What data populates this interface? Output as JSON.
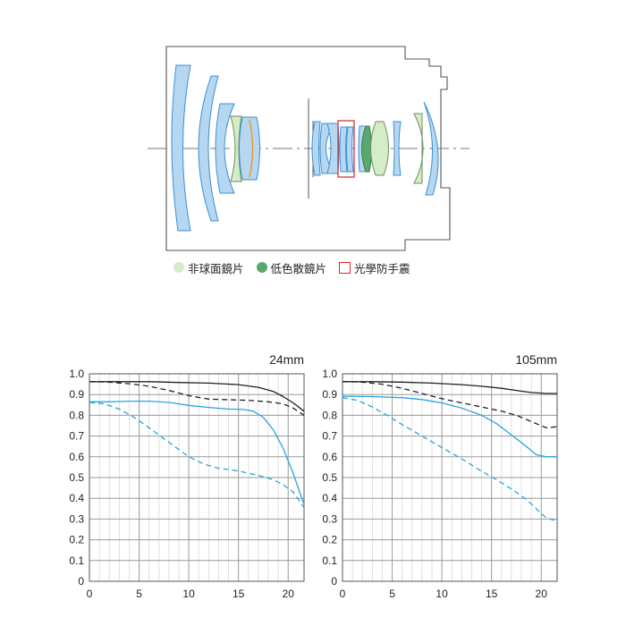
{
  "legend": {
    "items": [
      {
        "label": "非球面鏡片",
        "color": "#d4ecc8",
        "shape": "circle"
      },
      {
        "label": "低色散鏡片",
        "color": "#5aa86e",
        "shape": "circle"
      },
      {
        "label": "光學防手震",
        "color": "#d9262b",
        "shape": "box"
      }
    ]
  },
  "colors": {
    "lens_blue": "#b6d7f1",
    "lens_outline": "#3d8fd1",
    "aspherical": "#d4ecc8",
    "ld": "#5aa86e",
    "ois": "#d9262b",
    "mtf_black": "#231f20",
    "mtf_blue": "#2aa4dd"
  },
  "chart_data": [
    {
      "type": "line",
      "title": "24mm",
      "xlabel": "",
      "ylabel": "",
      "xlim": [
        0,
        21.6
      ],
      "ylim": [
        0,
        1.0
      ],
      "x_ticks": [
        "0",
        "5",
        "10",
        "15",
        "20"
      ],
      "y_ticks": [
        "0",
        "0.1",
        "0.2",
        "0.3",
        "0.4",
        "0.5",
        "0.6",
        "0.7",
        "0.8",
        "0.9",
        "1.0"
      ],
      "grid": true,
      "series": [
        {
          "color": "#231f20",
          "dash": false,
          "x": [
            0,
            3,
            6,
            9,
            12,
            15,
            17,
            18.5,
            19.5,
            20.5,
            21.6
          ],
          "y": [
            0.962,
            0.962,
            0.962,
            0.958,
            0.955,
            0.948,
            0.935,
            0.915,
            0.89,
            0.86,
            0.82
          ]
        },
        {
          "color": "#231f20",
          "dash": true,
          "x": [
            0,
            2,
            4,
            6,
            8,
            10,
            12,
            14,
            16,
            18,
            19.5,
            20.5,
            21.6
          ],
          "y": [
            0.962,
            0.96,
            0.952,
            0.94,
            0.92,
            0.895,
            0.878,
            0.875,
            0.872,
            0.865,
            0.855,
            0.835,
            0.8
          ]
        },
        {
          "color": "#2aa4dd",
          "dash": false,
          "x": [
            0,
            2,
            4,
            6,
            8,
            10,
            12,
            14,
            15.5,
            16.5,
            17.5,
            18.5,
            19.5,
            20.5,
            21.6
          ],
          "y": [
            0.865,
            0.865,
            0.868,
            0.868,
            0.862,
            0.848,
            0.838,
            0.83,
            0.828,
            0.82,
            0.79,
            0.73,
            0.64,
            0.52,
            0.37
          ]
        },
        {
          "color": "#2aa4dd",
          "dash": true,
          "x": [
            0,
            1.5,
            3,
            4.5,
            6,
            8,
            10,
            11.5,
            13,
            15,
            17,
            18.5,
            19.5,
            20.5,
            21.6
          ],
          "y": [
            0.862,
            0.855,
            0.83,
            0.79,
            0.74,
            0.67,
            0.6,
            0.565,
            0.545,
            0.532,
            0.51,
            0.49,
            0.465,
            0.43,
            0.355
          ]
        }
      ]
    },
    {
      "type": "line",
      "title": "105mm",
      "xlabel": "",
      "ylabel": "",
      "xlim": [
        0,
        21.6
      ],
      "ylim": [
        0,
        1.0
      ],
      "x_ticks": [
        "0",
        "5",
        "10",
        "15",
        "20"
      ],
      "y_ticks": [
        "0",
        "0.1",
        "0.2",
        "0.3",
        "0.4",
        "0.5",
        "0.6",
        "0.7",
        "0.8",
        "0.9",
        "1.0"
      ],
      "grid": true,
      "series": [
        {
          "color": "#231f20",
          "dash": false,
          "x": [
            0,
            3,
            6,
            9,
            12,
            14,
            16,
            17.5,
            19,
            20.5,
            21.6
          ],
          "y": [
            0.962,
            0.962,
            0.96,
            0.955,
            0.948,
            0.94,
            0.93,
            0.92,
            0.91,
            0.905,
            0.905
          ]
        },
        {
          "color": "#231f20",
          "dash": true,
          "x": [
            0,
            2,
            4,
            6,
            8,
            10,
            12,
            14,
            16,
            17.5,
            19,
            20.5,
            21.6
          ],
          "y": [
            0.962,
            0.96,
            0.95,
            0.93,
            0.905,
            0.88,
            0.86,
            0.84,
            0.82,
            0.8,
            0.77,
            0.74,
            0.745
          ]
        },
        {
          "color": "#2aa4dd",
          "dash": false,
          "x": [
            0,
            3,
            6,
            8,
            10,
            12,
            14,
            15.5,
            17,
            18.5,
            19.5,
            20.5,
            21.6
          ],
          "y": [
            0.892,
            0.89,
            0.885,
            0.876,
            0.86,
            0.835,
            0.8,
            0.76,
            0.705,
            0.65,
            0.61,
            0.6,
            0.6
          ]
        },
        {
          "color": "#2aa4dd",
          "dash": true,
          "x": [
            0,
            1.5,
            3,
            4.5,
            6,
            8,
            10,
            12,
            14,
            15.5,
            17,
            18.5,
            19.5,
            20.5,
            21.6
          ],
          "y": [
            0.885,
            0.872,
            0.84,
            0.8,
            0.755,
            0.7,
            0.645,
            0.59,
            0.53,
            0.49,
            0.445,
            0.395,
            0.35,
            0.305,
            0.29
          ]
        }
      ]
    }
  ]
}
